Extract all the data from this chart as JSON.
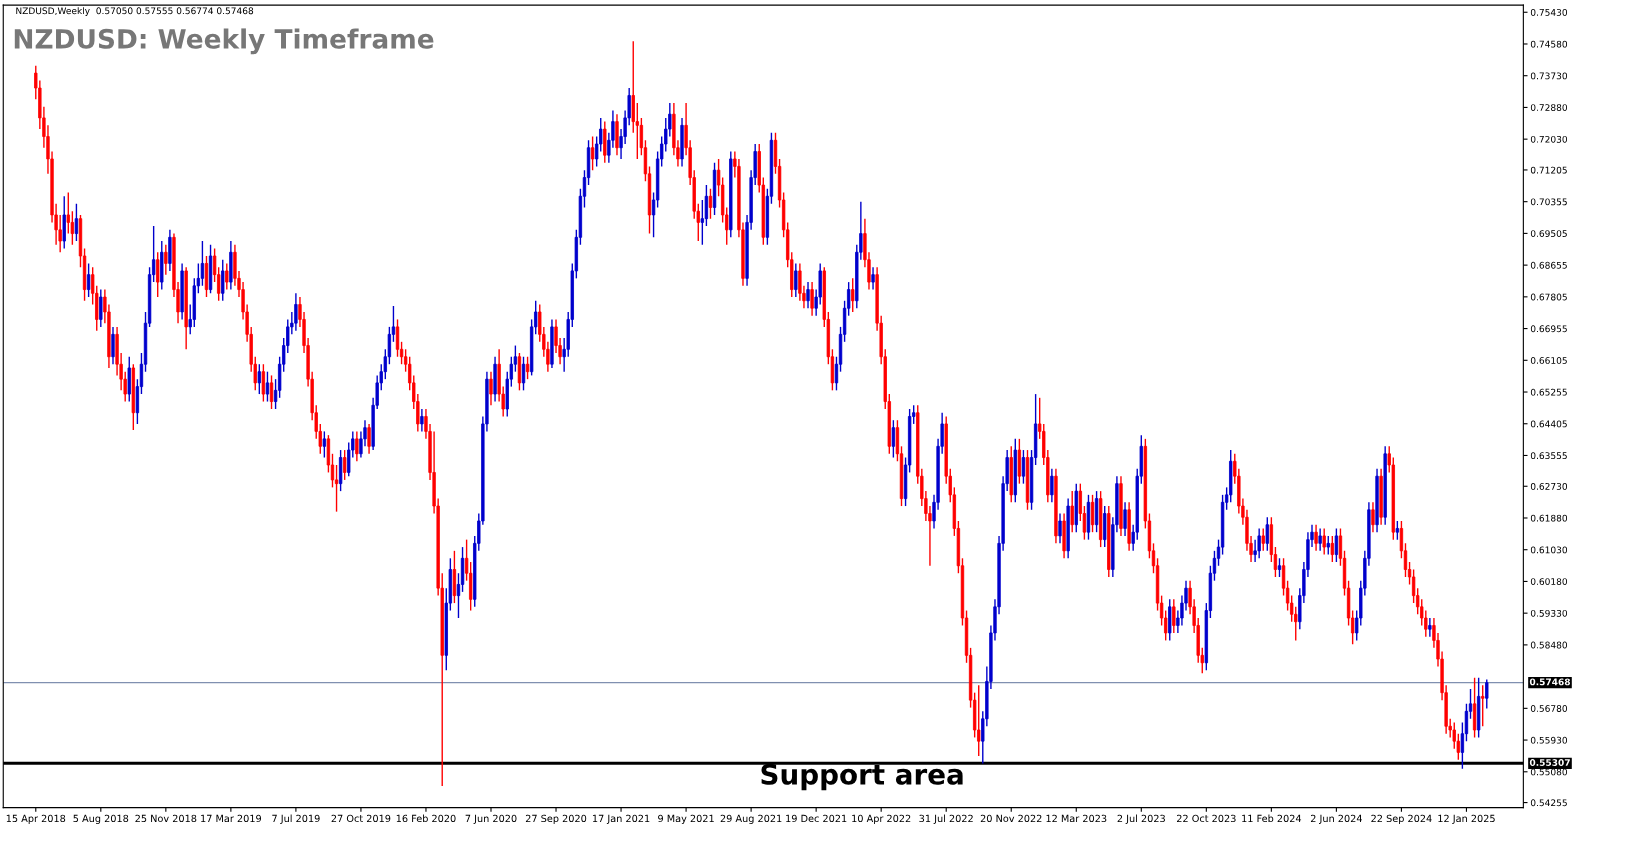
{
  "chart_data": {
    "type": "candlestick",
    "title": "NZDUSD: Weekly Timeframe",
    "annotations": [
      "NZDUSD,Weekly  0.57050 0.57555 0.56774 0.57468",
      {
        "text": "Support area",
        "y": 0.55307
      }
    ],
    "ylim": [
      0.5412,
      0.7562
    ],
    "yticks": [
      0.54255,
      {
        "value": 0.5508,
        "label": "0.55080"
      },
      {
        "value": 0.5593,
        "label": "0.55930"
      },
      {
        "value": 0.5678,
        "label": "0.56780"
      },
      {
        "value": 0.5848,
        "label": "0.58480"
      },
      {
        "value": 0.5933,
        "label": "0.59330"
      },
      {
        "value": 0.6018,
        "label": "0.60180"
      },
      {
        "value": 0.6103,
        "label": "0.61030"
      },
      {
        "value": 0.6188,
        "label": "0.61880"
      },
      {
        "value": 0.6273,
        "label": "0.62730"
      },
      0.63555,
      0.64405,
      0.65255,
      0.66105,
      0.66955,
      0.67805,
      0.68655,
      0.69505,
      0.70355,
      0.71205,
      {
        "value": 0.7203,
        "label": "0.72030"
      },
      {
        "value": 0.7288,
        "label": "0.72880"
      },
      {
        "value": 0.7373,
        "label": "0.73730"
      },
      {
        "value": 0.7458,
        "label": "0.74580"
      },
      {
        "value": 0.7543,
        "label": "0.75430"
      }
    ],
    "ref_lines": [
      {
        "axis": "y",
        "value": 0.57468,
        "label": "0.57468",
        "color": "#8090b0",
        "line_style": "solid"
      },
      {
        "axis": "y",
        "value": 0.55307,
        "label": "0.55307",
        "color": "#000000",
        "line_style": "solid"
      }
    ],
    "grid": false,
    "legend": false,
    "categories": [
      "15 Apr 2018",
      null,
      null,
      null,
      null,
      null,
      null,
      null,
      null,
      null,
      null,
      null,
      null,
      null,
      null,
      null,
      "5 Aug 2018",
      null,
      null,
      null,
      null,
      null,
      null,
      null,
      null,
      null,
      null,
      null,
      null,
      null,
      null,
      null,
      "25 Nov 2018",
      null,
      null,
      null,
      null,
      null,
      null,
      null,
      null,
      null,
      null,
      null,
      null,
      null,
      null,
      null,
      "17 Mar 2019",
      null,
      null,
      null,
      null,
      null,
      null,
      null,
      null,
      null,
      null,
      null,
      null,
      null,
      null,
      null,
      "7 Jul 2019",
      null,
      null,
      null,
      null,
      null,
      null,
      null,
      null,
      null,
      null,
      null,
      null,
      null,
      null,
      null,
      "27 Oct 2019",
      null,
      null,
      null,
      null,
      null,
      null,
      null,
      null,
      null,
      null,
      null,
      null,
      null,
      null,
      null,
      "16 Feb 2020",
      null,
      null,
      null,
      null,
      null,
      null,
      null,
      null,
      null,
      null,
      null,
      null,
      null,
      null,
      null,
      "7 Jun 2020",
      null,
      null,
      null,
      null,
      null,
      null,
      null,
      null,
      null,
      null,
      null,
      null,
      null,
      null,
      null,
      "27 Sep 2020",
      null,
      null,
      null,
      null,
      null,
      null,
      null,
      null,
      null,
      null,
      null,
      null,
      null,
      null,
      null,
      "17 Jan 2021",
      null,
      null,
      null,
      null,
      null,
      null,
      null,
      null,
      null,
      null,
      null,
      null,
      null,
      null,
      null,
      "9 May 2021",
      null,
      null,
      null,
      null,
      null,
      null,
      null,
      null,
      null,
      null,
      null,
      null,
      null,
      null,
      null,
      "29 Aug 2021",
      null,
      null,
      null,
      null,
      null,
      null,
      null,
      null,
      null,
      null,
      null,
      null,
      null,
      null,
      null,
      "19 Dec 2021",
      null,
      null,
      null,
      null,
      null,
      null,
      null,
      null,
      null,
      null,
      null,
      null,
      null,
      null,
      null,
      "10 Apr 2022",
      null,
      null,
      null,
      null,
      null,
      null,
      null,
      null,
      null,
      null,
      null,
      null,
      null,
      null,
      null,
      "31 Jul 2022",
      null,
      null,
      null,
      null,
      null,
      null,
      null,
      null,
      null,
      null,
      null,
      null,
      null,
      null,
      null,
      "20 Nov 2022",
      null,
      null,
      null,
      null,
      null,
      null,
      null,
      null,
      null,
      null,
      null,
      null,
      null,
      null,
      null,
      "12 Mar 2023",
      null,
      null,
      null,
      null,
      null,
      null,
      null,
      null,
      null,
      null,
      null,
      null,
      null,
      null,
      null,
      "2 Jul 2023",
      null,
      null,
      null,
      null,
      null,
      null,
      null,
      null,
      null,
      null,
      null,
      null,
      null,
      null,
      null,
      "22 Oct 2023",
      null,
      null,
      null,
      null,
      null,
      null,
      null,
      null,
      null,
      null,
      null,
      null,
      null,
      null,
      null,
      "11 Feb 2024",
      null,
      null,
      null,
      null,
      null,
      null,
      null,
      null,
      null,
      null,
      null,
      null,
      null,
      null,
      null,
      "2 Jun 2024",
      null,
      null,
      null,
      null,
      null,
      null,
      null,
      null,
      null,
      null,
      null,
      null,
      null,
      null,
      null,
      "22 Sep 2024",
      null,
      null,
      null,
      null,
      null,
      null,
      null,
      null,
      null,
      null,
      null,
      null,
      null,
      null,
      null,
      "12 Jan 2025",
      null,
      null,
      null,
      null,
      null
    ],
    "ohlc": [
      [
        0.738,
        0.74,
        0.731,
        0.734
      ],
      [
        0.734,
        0.736,
        0.723,
        0.726
      ],
      [
        0.726,
        0.729,
        0.718,
        0.721
      ],
      [
        0.721,
        0.724,
        0.711,
        0.715
      ],
      [
        0.715,
        0.717,
        0.698,
        0.7
      ],
      [
        0.7,
        0.703,
        0.692,
        0.696
      ],
      [
        0.696,
        0.7,
        0.69,
        0.693
      ],
      [
        0.693,
        0.705,
        0.691,
        0.7
      ],
      [
        0.7,
        0.706,
        0.695,
        0.698
      ],
      [
        0.698,
        0.701,
        0.692,
        0.695
      ],
      [
        0.695,
        0.703,
        0.693,
        0.699
      ],
      [
        0.699,
        0.7,
        0.686,
        0.689
      ],
      [
        0.689,
        0.691,
        0.677,
        0.68
      ],
      [
        0.68,
        0.687,
        0.678,
        0.684
      ],
      [
        0.684,
        0.686,
        0.676,
        0.679
      ],
      [
        0.679,
        0.681,
        0.669,
        0.672
      ],
      [
        0.672,
        0.68,
        0.67,
        0.678
      ],
      [
        0.678,
        0.68,
        0.671,
        0.674
      ],
      [
        0.674,
        0.676,
        0.659,
        0.662
      ],
      [
        0.662,
        0.67,
        0.66,
        0.668
      ],
      [
        0.668,
        0.67,
        0.657,
        0.66
      ],
      [
        0.66,
        0.663,
        0.653,
        0.656
      ],
      [
        0.656,
        0.658,
        0.65,
        0.652
      ],
      [
        0.652,
        0.662,
        0.65,
        0.659
      ],
      [
        0.659,
        0.66,
        0.6424,
        0.647
      ],
      [
        0.647,
        0.656,
        0.644,
        0.654
      ],
      [
        0.654,
        0.663,
        0.652,
        0.66
      ],
      [
        0.66,
        0.674,
        0.658,
        0.671
      ],
      [
        0.671,
        0.686,
        0.67,
        0.684
      ],
      [
        0.684,
        0.697,
        0.682,
        0.688
      ],
      [
        0.688,
        0.69,
        0.678,
        0.682
      ],
      [
        0.682,
        0.693,
        0.68,
        0.69
      ],
      [
        0.69,
        0.692,
        0.684,
        0.687
      ],
      [
        0.687,
        0.696,
        0.685,
        0.694
      ],
      [
        0.694,
        0.695,
        0.678,
        0.68
      ],
      [
        0.68,
        0.682,
        0.671,
        0.674
      ],
      [
        0.674,
        0.687,
        0.672,
        0.685
      ],
      [
        0.685,
        0.686,
        0.664,
        0.67
      ],
      [
        0.67,
        0.676,
        0.668,
        0.672
      ],
      [
        0.672,
        0.683,
        0.67,
        0.681
      ],
      [
        0.681,
        0.687,
        0.679,
        0.683
      ],
      [
        0.683,
        0.693,
        0.681,
        0.687
      ],
      [
        0.687,
        0.689,
        0.678,
        0.68
      ],
      [
        0.68,
        0.692,
        0.679,
        0.689
      ],
      [
        0.689,
        0.691,
        0.682,
        0.684
      ],
      [
        0.684,
        0.686,
        0.677,
        0.679
      ],
      [
        0.679,
        0.688,
        0.677,
        0.685
      ],
      [
        0.685,
        0.687,
        0.68,
        0.682
      ],
      [
        0.682,
        0.693,
        0.68,
        0.69
      ],
      [
        0.69,
        0.692,
        0.681,
        0.683
      ],
      [
        0.683,
        0.685,
        0.678,
        0.68
      ],
      [
        0.68,
        0.682,
        0.672,
        0.674
      ],
      [
        0.674,
        0.676,
        0.666,
        0.668
      ],
      [
        0.668,
        0.67,
        0.658,
        0.66
      ],
      [
        0.66,
        0.662,
        0.653,
        0.655
      ],
      [
        0.655,
        0.66,
        0.652,
        0.658
      ],
      [
        0.658,
        0.66,
        0.65,
        0.652
      ],
      [
        0.652,
        0.658,
        0.65,
        0.655
      ],
      [
        0.655,
        0.657,
        0.648,
        0.65
      ],
      [
        0.65,
        0.656,
        0.648,
        0.653
      ],
      [
        0.653,
        0.662,
        0.651,
        0.66
      ],
      [
        0.66,
        0.667,
        0.658,
        0.665
      ],
      [
        0.665,
        0.672,
        0.663,
        0.67
      ],
      [
        0.67,
        0.674,
        0.668,
        0.671
      ],
      [
        0.671,
        0.679,
        0.669,
        0.676
      ],
      [
        0.676,
        0.678,
        0.67,
        0.672
      ],
      [
        0.672,
        0.674,
        0.663,
        0.665
      ],
      [
        0.665,
        0.667,
        0.654,
        0.656
      ],
      [
        0.656,
        0.658,
        0.645,
        0.647
      ],
      [
        0.647,
        0.649,
        0.64,
        0.642
      ],
      [
        0.642,
        0.644,
        0.636,
        0.638
      ],
      [
        0.638,
        0.642,
        0.635,
        0.64
      ],
      [
        0.64,
        0.641,
        0.631,
        0.633
      ],
      [
        0.633,
        0.636,
        0.627,
        0.629
      ],
      [
        0.629,
        0.633,
        0.6205,
        0.628
      ],
      [
        0.628,
        0.637,
        0.626,
        0.635
      ],
      [
        0.635,
        0.637,
        0.629,
        0.631
      ],
      [
        0.631,
        0.639,
        0.63,
        0.637
      ],
      [
        0.637,
        0.642,
        0.635,
        0.64
      ],
      [
        0.64,
        0.642,
        0.634,
        0.636
      ],
      [
        0.636,
        0.642,
        0.635,
        0.64
      ],
      [
        0.64,
        0.645,
        0.638,
        0.643
      ],
      [
        0.643,
        0.644,
        0.636,
        0.638
      ],
      [
        0.638,
        0.651,
        0.637,
        0.649
      ],
      [
        0.649,
        0.657,
        0.648,
        0.655
      ],
      [
        0.655,
        0.66,
        0.653,
        0.658
      ],
      [
        0.658,
        0.664,
        0.656,
        0.662
      ],
      [
        0.662,
        0.67,
        0.66,
        0.668
      ],
      [
        0.668,
        0.6756,
        0.666,
        0.67
      ],
      [
        0.67,
        0.672,
        0.662,
        0.664
      ],
      [
        0.664,
        0.666,
        0.66,
        0.662
      ],
      [
        0.662,
        0.664,
        0.658,
        0.66
      ],
      [
        0.66,
        0.662,
        0.653,
        0.655
      ],
      [
        0.655,
        0.657,
        0.648,
        0.65
      ],
      [
        0.65,
        0.652,
        0.642,
        0.644
      ],
      [
        0.644,
        0.648,
        0.642,
        0.646
      ],
      [
        0.646,
        0.648,
        0.64,
        0.642
      ],
      [
        0.642,
        0.644,
        0.629,
        0.631
      ],
      [
        0.631,
        0.642,
        0.62,
        0.622
      ],
      [
        0.622,
        0.624,
        0.598,
        0.6
      ],
      [
        0.6,
        0.604,
        0.547,
        0.582
      ],
      [
        0.582,
        0.6,
        0.578,
        0.596
      ],
      [
        0.596,
        0.608,
        0.594,
        0.605
      ],
      [
        0.605,
        0.61,
        0.596,
        0.598
      ],
      [
        0.598,
        0.604,
        0.592,
        0.601
      ],
      [
        0.601,
        0.611,
        0.599,
        0.608
      ],
      [
        0.608,
        0.613,
        0.602,
        0.604
      ],
      [
        0.604,
        0.607,
        0.594,
        0.597
      ],
      [
        0.597,
        0.614,
        0.595,
        0.612
      ],
      [
        0.612,
        0.62,
        0.61,
        0.618
      ],
      [
        0.618,
        0.646,
        0.617,
        0.644
      ],
      [
        0.644,
        0.658,
        0.642,
        0.656
      ],
      [
        0.656,
        0.658,
        0.649,
        0.652
      ],
      [
        0.652,
        0.662,
        0.65,
        0.66
      ],
      [
        0.66,
        0.664,
        0.65,
        0.652
      ],
      [
        0.652,
        0.654,
        0.646,
        0.648
      ],
      [
        0.648,
        0.658,
        0.646,
        0.656
      ],
      [
        0.656,
        0.662,
        0.654,
        0.66
      ],
      [
        0.66,
        0.665,
        0.658,
        0.662
      ],
      [
        0.662,
        0.663,
        0.653,
        0.655
      ],
      [
        0.655,
        0.662,
        0.653,
        0.66
      ],
      [
        0.66,
        0.662,
        0.656,
        0.658
      ],
      [
        0.658,
        0.672,
        0.657,
        0.67
      ],
      [
        0.67,
        0.677,
        0.668,
        0.674
      ],
      [
        0.674,
        0.676,
        0.666,
        0.668
      ],
      [
        0.668,
        0.67,
        0.662,
        0.664
      ],
      [
        0.664,
        0.666,
        0.658,
        0.66
      ],
      [
        0.66,
        0.672,
        0.659,
        0.67
      ],
      [
        0.67,
        0.672,
        0.663,
        0.665
      ],
      [
        0.665,
        0.667,
        0.66,
        0.662
      ],
      [
        0.662,
        0.667,
        0.658,
        0.664
      ],
      [
        0.664,
        0.674,
        0.662,
        0.672
      ],
      [
        0.672,
        0.687,
        0.67,
        0.685
      ],
      [
        0.685,
        0.696,
        0.683,
        0.694
      ],
      [
        0.694,
        0.707,
        0.692,
        0.705
      ],
      [
        0.705,
        0.712,
        0.702,
        0.71
      ],
      [
        0.71,
        0.72,
        0.708,
        0.718
      ],
      [
        0.718,
        0.721,
        0.712,
        0.715
      ],
      [
        0.715,
        0.721,
        0.713,
        0.719
      ],
      [
        0.719,
        0.726,
        0.717,
        0.723
      ],
      [
        0.723,
        0.725,
        0.714,
        0.716
      ],
      [
        0.716,
        0.722,
        0.714,
        0.72
      ],
      [
        0.72,
        0.728,
        0.718,
        0.725
      ],
      [
        0.725,
        0.727,
        0.716,
        0.718
      ],
      [
        0.718,
        0.723,
        0.715,
        0.721
      ],
      [
        0.721,
        0.728,
        0.719,
        0.726
      ],
      [
        0.726,
        0.734,
        0.724,
        0.732
      ],
      [
        0.732,
        0.7465,
        0.722,
        0.725
      ],
      [
        0.725,
        0.73,
        0.715,
        0.724
      ],
      [
        0.724,
        0.726,
        0.716,
        0.718
      ],
      [
        0.718,
        0.72,
        0.709,
        0.711
      ],
      [
        0.711,
        0.713,
        0.695,
        0.7
      ],
      [
        0.7,
        0.706,
        0.694,
        0.704
      ],
      [
        0.704,
        0.717,
        0.702,
        0.715
      ],
      [
        0.715,
        0.721,
        0.713,
        0.719
      ],
      [
        0.719,
        0.726,
        0.717,
        0.723
      ],
      [
        0.723,
        0.73,
        0.721,
        0.727
      ],
      [
        0.727,
        0.73,
        0.716,
        0.718
      ],
      [
        0.718,
        0.72,
        0.713,
        0.715
      ],
      [
        0.715,
        0.726,
        0.713,
        0.724
      ],
      [
        0.724,
        0.73,
        0.716,
        0.718
      ],
      [
        0.718,
        0.72,
        0.708,
        0.71
      ],
      [
        0.71,
        0.712,
        0.699,
        0.701
      ],
      [
        0.701,
        0.703,
        0.693,
        0.698
      ],
      [
        0.698,
        0.704,
        0.692,
        0.699
      ],
      [
        0.699,
        0.708,
        0.697,
        0.705
      ],
      [
        0.705,
        0.707,
        0.699,
        0.702
      ],
      [
        0.702,
        0.714,
        0.7,
        0.712
      ],
      [
        0.712,
        0.715,
        0.705,
        0.708
      ],
      [
        0.708,
        0.71,
        0.698,
        0.7
      ],
      [
        0.7,
        0.702,
        0.692,
        0.696
      ],
      [
        0.696,
        0.717,
        0.694,
        0.715
      ],
      [
        0.715,
        0.717,
        0.71,
        0.713
      ],
      [
        0.713,
        0.715,
        0.694,
        0.696
      ],
      [
        0.696,
        0.698,
        0.681,
        0.683
      ],
      [
        0.683,
        0.7,
        0.681,
        0.698
      ],
      [
        0.698,
        0.712,
        0.696,
        0.71
      ],
      [
        0.71,
        0.719,
        0.708,
        0.717
      ],
      [
        0.717,
        0.719,
        0.706,
        0.708
      ],
      [
        0.708,
        0.71,
        0.692,
        0.694
      ],
      [
        0.694,
        0.707,
        0.692,
        0.705
      ],
      [
        0.705,
        0.722,
        0.703,
        0.72
      ],
      [
        0.72,
        0.722,
        0.711,
        0.713
      ],
      [
        0.713,
        0.715,
        0.702,
        0.704
      ],
      [
        0.704,
        0.706,
        0.694,
        0.696
      ],
      [
        0.696,
        0.698,
        0.686,
        0.688
      ],
      [
        0.688,
        0.69,
        0.678,
        0.68
      ],
      [
        0.68,
        0.687,
        0.678,
        0.685
      ],
      [
        0.685,
        0.687,
        0.677,
        0.679
      ],
      [
        0.679,
        0.681,
        0.675,
        0.677
      ],
      [
        0.677,
        0.682,
        0.675,
        0.68
      ],
      [
        0.68,
        0.682,
        0.673,
        0.675
      ],
      [
        0.675,
        0.68,
        0.673,
        0.678
      ],
      [
        0.678,
        0.687,
        0.676,
        0.685
      ],
      [
        0.685,
        0.686,
        0.67,
        0.672
      ],
      [
        0.672,
        0.674,
        0.66,
        0.662
      ],
      [
        0.662,
        0.664,
        0.653,
        0.655
      ],
      [
        0.655,
        0.662,
        0.653,
        0.66
      ],
      [
        0.66,
        0.67,
        0.658,
        0.668
      ],
      [
        0.668,
        0.677,
        0.666,
        0.675
      ],
      [
        0.675,
        0.682,
        0.673,
        0.68
      ],
      [
        0.68,
        0.683,
        0.674,
        0.677
      ],
      [
        0.677,
        0.692,
        0.675,
        0.69
      ],
      [
        0.69,
        0.7035,
        0.688,
        0.695
      ],
      [
        0.695,
        0.699,
        0.686,
        0.688
      ],
      [
        0.688,
        0.69,
        0.68,
        0.682
      ],
      [
        0.682,
        0.686,
        0.68,
        0.684
      ],
      [
        0.684,
        0.686,
        0.669,
        0.671
      ],
      [
        0.671,
        0.673,
        0.66,
        0.662
      ],
      [
        0.662,
        0.664,
        0.648,
        0.65
      ],
      [
        0.65,
        0.652,
        0.636,
        0.638
      ],
      [
        0.638,
        0.645,
        0.635,
        0.643
      ],
      [
        0.643,
        0.645,
        0.634,
        0.636
      ],
      [
        0.636,
        0.638,
        0.622,
        0.624
      ],
      [
        0.624,
        0.635,
        0.622,
        0.633
      ],
      [
        0.633,
        0.648,
        0.631,
        0.646
      ],
      [
        0.646,
        0.649,
        0.644,
        0.647
      ],
      [
        0.647,
        0.649,
        0.628,
        0.63
      ],
      [
        0.63,
        0.632,
        0.622,
        0.624
      ],
      [
        0.624,
        0.626,
        0.618,
        0.62
      ],
      [
        0.62,
        0.622,
        0.606,
        0.618
      ],
      [
        0.618,
        0.625,
        0.616,
        0.623
      ],
      [
        0.623,
        0.64,
        0.621,
        0.638
      ],
      [
        0.638,
        0.647,
        0.636,
        0.644
      ],
      [
        0.644,
        0.646,
        0.628,
        0.63
      ],
      [
        0.63,
        0.632,
        0.623,
        0.625
      ],
      [
        0.625,
        0.627,
        0.614,
        0.616
      ],
      [
        0.616,
        0.618,
        0.604,
        0.606
      ],
      [
        0.606,
        0.608,
        0.59,
        0.592
      ],
      [
        0.592,
        0.594,
        0.58,
        0.582
      ],
      [
        0.582,
        0.584,
        0.568,
        0.57
      ],
      [
        0.57,
        0.572,
        0.56,
        0.562
      ],
      [
        0.562,
        0.574,
        0.555,
        0.559
      ],
      [
        0.559,
        0.567,
        0.553,
        0.565
      ],
      [
        0.565,
        0.579,
        0.563,
        0.575
      ],
      [
        0.575,
        0.59,
        0.573,
        0.588
      ],
      [
        0.588,
        0.597,
        0.586,
        0.595
      ],
      [
        0.595,
        0.614,
        0.593,
        0.612
      ],
      [
        0.612,
        0.63,
        0.61,
        0.628
      ],
      [
        0.628,
        0.637,
        0.626,
        0.635
      ],
      [
        0.635,
        0.638,
        0.623,
        0.625
      ],
      [
        0.625,
        0.64,
        0.623,
        0.637
      ],
      [
        0.637,
        0.64,
        0.628,
        0.63
      ],
      [
        0.63,
        0.637,
        0.628,
        0.635
      ],
      [
        0.635,
        0.637,
        0.621,
        0.623
      ],
      [
        0.623,
        0.637,
        0.621,
        0.635
      ],
      [
        0.635,
        0.652,
        0.633,
        0.644
      ],
      [
        0.644,
        0.651,
        0.64,
        0.642
      ],
      [
        0.642,
        0.644,
        0.633,
        0.635
      ],
      [
        0.635,
        0.637,
        0.623,
        0.625
      ],
      [
        0.625,
        0.632,
        0.623,
        0.63
      ],
      [
        0.63,
        0.632,
        0.612,
        0.614
      ],
      [
        0.614,
        0.62,
        0.612,
        0.618
      ],
      [
        0.618,
        0.62,
        0.608,
        0.61
      ],
      [
        0.61,
        0.624,
        0.608,
        0.622
      ],
      [
        0.622,
        0.626,
        0.615,
        0.617
      ],
      [
        0.617,
        0.628,
        0.615,
        0.626
      ],
      [
        0.626,
        0.628,
        0.618,
        0.62
      ],
      [
        0.62,
        0.622,
        0.613,
        0.615
      ],
      [
        0.615,
        0.625,
        0.613,
        0.623
      ],
      [
        0.623,
        0.625,
        0.615,
        0.617
      ],
      [
        0.617,
        0.626,
        0.615,
        0.624
      ],
      [
        0.624,
        0.626,
        0.611,
        0.613
      ],
      [
        0.613,
        0.622,
        0.611,
        0.62
      ],
      [
        0.62,
        0.622,
        0.603,
        0.605
      ],
      [
        0.605,
        0.619,
        0.603,
        0.617
      ],
      [
        0.617,
        0.63,
        0.615,
        0.628
      ],
      [
        0.628,
        0.63,
        0.614,
        0.616
      ],
      [
        0.616,
        0.623,
        0.614,
        0.621
      ],
      [
        0.621,
        0.623,
        0.61,
        0.612
      ],
      [
        0.612,
        0.617,
        0.61,
        0.615
      ],
      [
        0.615,
        0.632,
        0.613,
        0.63
      ],
      [
        0.63,
        0.641,
        0.628,
        0.638
      ],
      [
        0.638,
        0.64,
        0.616,
        0.618
      ],
      [
        0.618,
        0.62,
        0.608,
        0.61
      ],
      [
        0.61,
        0.612,
        0.604,
        0.606
      ],
      [
        0.606,
        0.608,
        0.594,
        0.596
      ],
      [
        0.596,
        0.598,
        0.59,
        0.592
      ],
      [
        0.592,
        0.594,
        0.586,
        0.588
      ],
      [
        0.588,
        0.597,
        0.586,
        0.595
      ],
      [
        0.595,
        0.597,
        0.588,
        0.59
      ],
      [
        0.59,
        0.594,
        0.588,
        0.592
      ],
      [
        0.592,
        0.598,
        0.59,
        0.596
      ],
      [
        0.596,
        0.602,
        0.594,
        0.6
      ],
      [
        0.6,
        0.602,
        0.593,
        0.595
      ],
      [
        0.595,
        0.597,
        0.588,
        0.59
      ],
      [
        0.59,
        0.592,
        0.58,
        0.582
      ],
      [
        0.582,
        0.584,
        0.5772,
        0.58
      ],
      [
        0.58,
        0.596,
        0.578,
        0.594
      ],
      [
        0.594,
        0.606,
        0.592,
        0.604
      ],
      [
        0.604,
        0.61,
        0.602,
        0.608
      ],
      [
        0.608,
        0.613,
        0.606,
        0.611
      ],
      [
        0.611,
        0.625,
        0.609,
        0.623
      ],
      [
        0.623,
        0.627,
        0.621,
        0.625
      ],
      [
        0.625,
        0.637,
        0.623,
        0.634
      ],
      [
        0.634,
        0.636,
        0.628,
        0.63
      ],
      [
        0.63,
        0.632,
        0.62,
        0.622
      ],
      [
        0.622,
        0.624,
        0.617,
        0.619
      ],
      [
        0.619,
        0.621,
        0.61,
        0.612
      ],
      [
        0.612,
        0.614,
        0.607,
        0.609
      ],
      [
        0.609,
        0.613,
        0.607,
        0.61
      ],
      [
        0.61,
        0.616,
        0.608,
        0.614
      ],
      [
        0.614,
        0.616,
        0.61,
        0.612
      ],
      [
        0.612,
        0.619,
        0.61,
        0.617
      ],
      [
        0.617,
        0.619,
        0.607,
        0.609
      ],
      [
        0.609,
        0.611,
        0.603,
        0.605
      ],
      [
        0.605,
        0.608,
        0.603,
        0.606
      ],
      [
        0.606,
        0.608,
        0.598,
        0.6
      ],
      [
        0.6,
        0.602,
        0.594,
        0.596
      ],
      [
        0.596,
        0.598,
        0.591,
        0.593
      ],
      [
        0.593,
        0.595,
        0.586,
        0.591
      ],
      [
        0.591,
        0.6,
        0.589,
        0.598
      ],
      [
        0.598,
        0.607,
        0.596,
        0.605
      ],
      [
        0.605,
        0.615,
        0.603,
        0.613
      ],
      [
        0.613,
        0.617,
        0.611,
        0.615
      ],
      [
        0.615,
        0.617,
        0.61,
        0.612
      ],
      [
        0.612,
        0.616,
        0.61,
        0.614
      ],
      [
        0.614,
        0.616,
        0.609,
        0.611
      ],
      [
        0.611,
        0.614,
        0.609,
        0.612
      ],
      [
        0.612,
        0.614,
        0.607,
        0.609
      ],
      [
        0.609,
        0.616,
        0.607,
        0.614
      ],
      [
        0.614,
        0.616,
        0.606,
        0.608
      ],
      [
        0.608,
        0.61,
        0.598,
        0.6
      ],
      [
        0.6,
        0.602,
        0.59,
        0.592
      ],
      [
        0.592,
        0.594,
        0.585,
        0.588
      ],
      [
        0.588,
        0.594,
        0.586,
        0.592
      ],
      [
        0.592,
        0.602,
        0.59,
        0.6
      ],
      [
        0.6,
        0.61,
        0.598,
        0.608
      ],
      [
        0.608,
        0.623,
        0.606,
        0.621
      ],
      [
        0.621,
        0.623,
        0.615,
        0.617
      ],
      [
        0.617,
        0.632,
        0.615,
        0.63
      ],
      [
        0.63,
        0.632,
        0.617,
        0.619
      ],
      [
        0.619,
        0.638,
        0.617,
        0.636
      ],
      [
        0.636,
        0.638,
        0.631,
        0.633
      ],
      [
        0.633,
        0.635,
        0.613,
        0.615
      ],
      [
        0.615,
        0.618,
        0.613,
        0.616
      ],
      [
        0.616,
        0.618,
        0.608,
        0.61
      ],
      [
        0.61,
        0.612,
        0.603,
        0.605
      ],
      [
        0.605,
        0.607,
        0.601,
        0.603
      ],
      [
        0.603,
        0.605,
        0.596,
        0.598
      ],
      [
        0.598,
        0.6,
        0.593,
        0.595
      ],
      [
        0.595,
        0.597,
        0.59,
        0.592
      ],
      [
        0.592,
        0.594,
        0.587,
        0.589
      ],
      [
        0.589,
        0.592,
        0.587,
        0.59
      ],
      [
        0.59,
        0.592,
        0.584,
        0.586
      ],
      [
        0.586,
        0.588,
        0.579,
        0.581
      ],
      [
        0.581,
        0.583,
        0.57,
        0.572
      ],
      [
        0.572,
        0.574,
        0.561,
        0.563
      ],
      [
        0.563,
        0.565,
        0.56,
        0.562
      ],
      [
        0.562,
        0.564,
        0.557,
        0.559
      ],
      [
        0.559,
        0.561,
        0.554,
        0.556
      ],
      [
        0.556,
        0.564,
        0.5516,
        0.561
      ],
      [
        0.561,
        0.569,
        0.559,
        0.567
      ],
      [
        0.567,
        0.573,
        0.565,
        0.569
      ],
      [
        0.569,
        0.576,
        0.56,
        0.562
      ],
      [
        0.562,
        0.576,
        0.56,
        0.571
      ],
      [
        0.571,
        0.574,
        0.563,
        0.5705
      ],
      [
        0.5705,
        0.57555,
        0.56774,
        0.57468
      ]
    ]
  }
}
